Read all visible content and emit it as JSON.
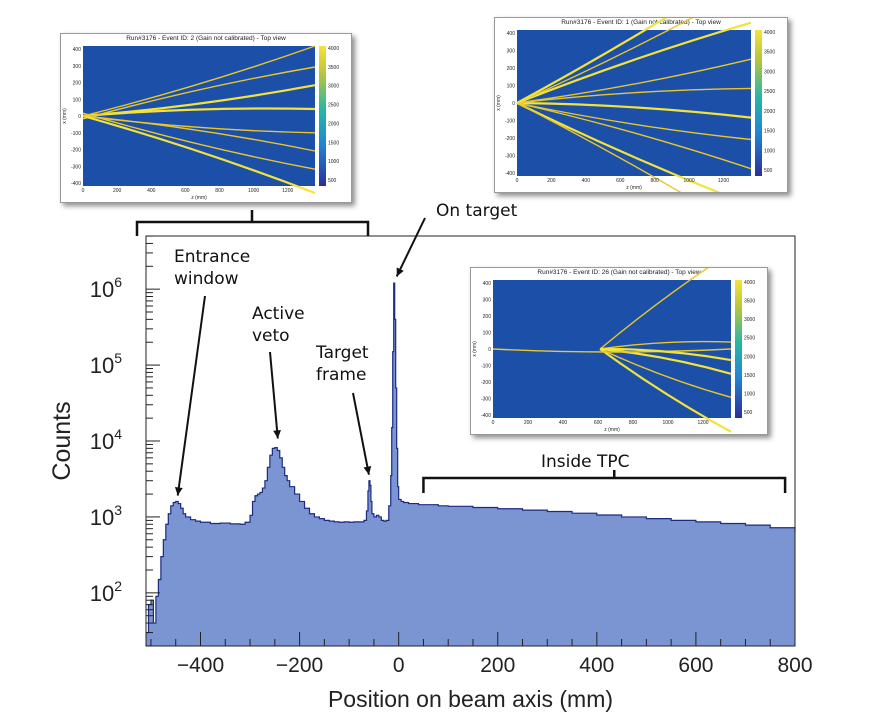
{
  "chart_data": {
    "type": "histogram",
    "xlabel": "Position on beam axis (mm)",
    "ylabel": "Counts",
    "xlim": [
      -510,
      800
    ],
    "ylim_log10": [
      1.3,
      6.7
    ],
    "yscale": "log",
    "fill_color": "#7b95d2",
    "line_color": "#1c2a82",
    "x_ticks": [
      -400,
      -200,
      0,
      200,
      400,
      600,
      800
    ],
    "y_ticks": [
      {
        "base": "10",
        "exp": "2",
        "value": 100
      },
      {
        "base": "10",
        "exp": "3",
        "value": 1000
      },
      {
        "base": "10",
        "exp": "4",
        "value": 10000
      },
      {
        "base": "10",
        "exp": "5",
        "value": 100000
      },
      {
        "base": "10",
        "exp": "6",
        "value": 1000000
      }
    ],
    "series": [
      {
        "x": [
          -510,
          -505,
          -500,
          -495,
          -490,
          -485,
          -480,
          -475,
          -470,
          -465,
          -460,
          -455,
          -450,
          -445,
          -440,
          -435,
          -430,
          -420,
          -410,
          -400,
          -380,
          -360,
          -340,
          -320,
          -310,
          -300,
          -295,
          -290,
          -285,
          -280,
          -275,
          -270,
          -265,
          -260,
          -255,
          -250,
          -245,
          -240,
          -235,
          -230,
          -225,
          -220,
          -210,
          -200,
          -190,
          -180,
          -170,
          -160,
          -150,
          -140,
          -130,
          -120,
          -110,
          -100,
          -90,
          -80,
          -70,
          -65,
          -62,
          -60,
          -58,
          -56,
          -54,
          -50,
          -45,
          -40,
          -35,
          -30,
          -25,
          -20,
          -16,
          -14,
          -12,
          -10,
          -8,
          -6,
          -4,
          -2,
          0,
          5,
          10,
          20,
          40,
          60,
          80,
          100,
          150,
          200,
          250,
          300,
          350,
          400,
          450,
          500,
          550,
          600,
          650,
          700,
          750,
          800
        ],
        "y": [
          30,
          70,
          80,
          40,
          90,
          150,
          300,
          500,
          800,
          1100,
          1400,
          1550,
          1600,
          1500,
          1300,
          1100,
          1000,
          920,
          880,
          850,
          820,
          830,
          810,
          800,
          850,
          1050,
          1600,
          1900,
          2000,
          2100,
          2400,
          3000,
          4500,
          6500,
          8000,
          8200,
          7500,
          6000,
          4500,
          3500,
          3000,
          2500,
          2000,
          1600,
          1300,
          1100,
          1000,
          950,
          900,
          880,
          860,
          850,
          860,
          850,
          860,
          860,
          900,
          1200,
          2200,
          3000,
          2600,
          1600,
          1100,
          1000,
          1050,
          1000,
          900,
          880,
          900,
          1400,
          3500,
          15000,
          150000,
          1200000,
          400000,
          50000,
          8000,
          2500,
          1700,
          1600,
          1550,
          1500,
          1450,
          1450,
          1400,
          1380,
          1330,
          1280,
          1230,
          1180,
          1120,
          1060,
          1000,
          950,
          900,
          860,
          820,
          780,
          720,
          640
        ]
      }
    ],
    "annotations": [
      {
        "label": "Entrance\nwindow",
        "arrow_x": -450,
        "arrow_y": 1500
      },
      {
        "label": "Active\nveto",
        "arrow_x": -250,
        "arrow_y": 9000
      },
      {
        "label": "Target\nframe",
        "arrow_x": -58,
        "arrow_y": 3000
      },
      {
        "label": "On target",
        "arrow_x": -12,
        "arrow_y": 1300000
      },
      {
        "label": "Inside TPC",
        "bracket_x": [
          50,
          780
        ]
      }
    ],
    "insets": [
      {
        "title": "Run#3176 - Event ID: 2 (Gain not calibrated) - Top view",
        "xlabel": "z (mm)",
        "ylabel": "x (mm)",
        "x_ticks": [
          "0",
          "200",
          "400",
          "600",
          "800",
          "1000",
          "1200"
        ],
        "y_ticks": [
          "400",
          "300",
          "200",
          "100",
          "0",
          "-100",
          "-200",
          "-300",
          "-400"
        ],
        "colorbar_ticks": [
          "4000",
          "3500",
          "3000",
          "2500",
          "2000",
          "1500",
          "1000",
          "500"
        ]
      },
      {
        "title": "Run#3176 - Event ID: 1 (Gain not calibrated) - Top view",
        "xlabel": "z (mm)",
        "ylabel": "x (mm)",
        "x_ticks": [
          "0",
          "200",
          "400",
          "600",
          "800",
          "1000",
          "1200"
        ],
        "y_ticks": [
          "400",
          "300",
          "200",
          "100",
          "0",
          "-100",
          "-200",
          "-300",
          "-400"
        ],
        "colorbar_ticks": [
          "4000",
          "3500",
          "3000",
          "2500",
          "2000",
          "1500",
          "1000",
          "500"
        ]
      },
      {
        "title": "Run#3176 - Event ID: 26 (Gain not calibrated) - Top view",
        "xlabel": "z (mm)",
        "ylabel": "x (mm)",
        "x_ticks": [
          "0",
          "200",
          "400",
          "600",
          "800",
          "1000",
          "1200"
        ],
        "y_ticks": [
          "400",
          "300",
          "200",
          "100",
          "0",
          "-100",
          "-200",
          "-300",
          "-400"
        ],
        "colorbar_ticks": [
          "4000",
          "3500",
          "3000",
          "2500",
          "2000",
          "1500",
          "1000",
          "500"
        ]
      }
    ]
  }
}
